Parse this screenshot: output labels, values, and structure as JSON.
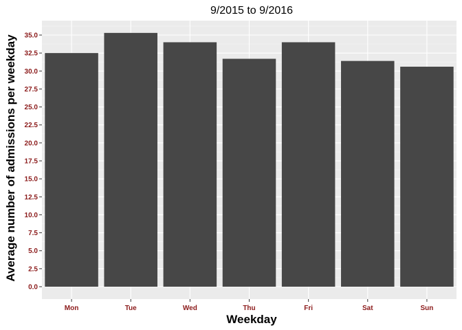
{
  "chart_data": {
    "type": "bar",
    "title": "9/2015 to 9/2016",
    "xlabel": "Weekday",
    "ylabel": "Average number of admissions per weekday",
    "categories": [
      "Mon",
      "Tue",
      "Wed",
      "Thu",
      "Fri",
      "Sat",
      "Sun"
    ],
    "values": [
      32.5,
      35.3,
      34.0,
      31.7,
      34.0,
      31.4,
      30.6
    ],
    "ylim": [
      0,
      36.8
    ],
    "yticks": [
      "0.0",
      "2.5",
      "5.0",
      "7.5",
      "10.0",
      "12.5",
      "15.0",
      "17.5",
      "20.0",
      "22.5",
      "25.0",
      "27.5",
      "30.0",
      "32.5",
      "35.0"
    ],
    "grid": true,
    "colors": {
      "bar": "#474747",
      "panel": "#ebebeb",
      "grid_major": "#ffffff",
      "tick_label": "#8b1a1a"
    }
  }
}
